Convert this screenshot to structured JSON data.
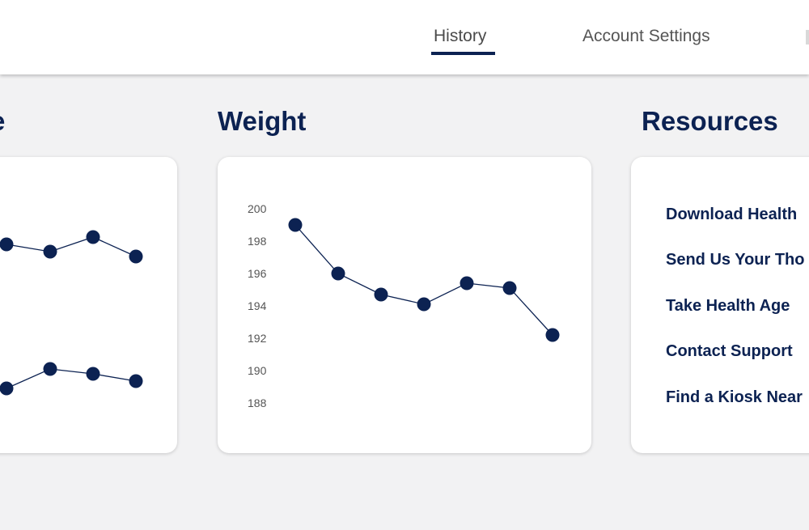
{
  "nav": {
    "tabs": [
      {
        "label": "History",
        "active": true
      },
      {
        "label": "Account Settings",
        "active": false
      },
      {
        "label": "",
        "active": false
      }
    ]
  },
  "sections": {
    "left_title": "e",
    "weight_title": "Weight",
    "resources_title": "Resources"
  },
  "colors": {
    "brand": "#0c2252",
    "page_bg": "#f2f2f3"
  },
  "chart_data": [
    {
      "type": "line",
      "title": "",
      "series": [
        {
          "values": [
            null,
            0.7,
            0.55,
            0.85,
            0.45
          ]
        },
        {
          "values": [
            null,
            0.3,
            0.7,
            0.6,
            0.45
          ]
        }
      ],
      "yticks": [],
      "note_partial": "chart partially cut off at left edge"
    },
    {
      "type": "line",
      "title": "",
      "x": [
        1,
        2,
        3,
        4,
        5,
        6,
        7
      ],
      "series": [
        {
          "values": [
            199,
            196,
            194.7,
            194.1,
            195.4,
            195.1,
            192.2
          ]
        }
      ],
      "ylim": [
        188,
        200
      ],
      "yticks": [
        "200",
        "198",
        "196",
        "194",
        "192",
        "190",
        "188"
      ],
      "grid": false,
      "legend": "none"
    }
  ],
  "resources": {
    "links": [
      "Download Health",
      "Send Us Your Tho",
      "Take Health Age",
      "Contact Support",
      "Find a Kiosk Near"
    ]
  }
}
